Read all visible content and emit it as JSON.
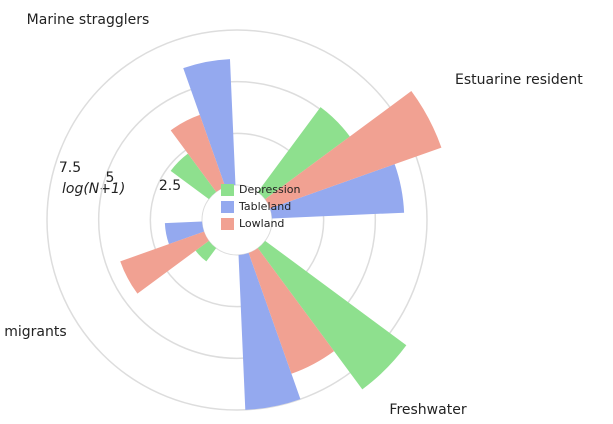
{
  "chart_data": {
    "type": "barpolar",
    "categories": [
      "Marine stragglers",
      "Estuarine resident",
      "Freshwater",
      "Marine migrants"
    ],
    "radial_axis_title": "log(N+1)",
    "rlim": [
      0,
      7.5
    ],
    "rticks": [
      2.5,
      5,
      7.5
    ],
    "legend": "center",
    "series": [
      {
        "name": "Depression",
        "color": "#8ee08e",
        "values": [
          2.3,
          5.1,
          8.5,
          0.8
        ]
      },
      {
        "name": "Tableland",
        "color": "#94a9ef",
        "values": [
          6.1,
          6.4,
          7.5,
          1.8
        ]
      },
      {
        "name": "Lowland",
        "color": "#f1a192",
        "values": [
          3.7,
          8.8,
          6.2,
          4.3
        ]
      }
    ]
  }
}
